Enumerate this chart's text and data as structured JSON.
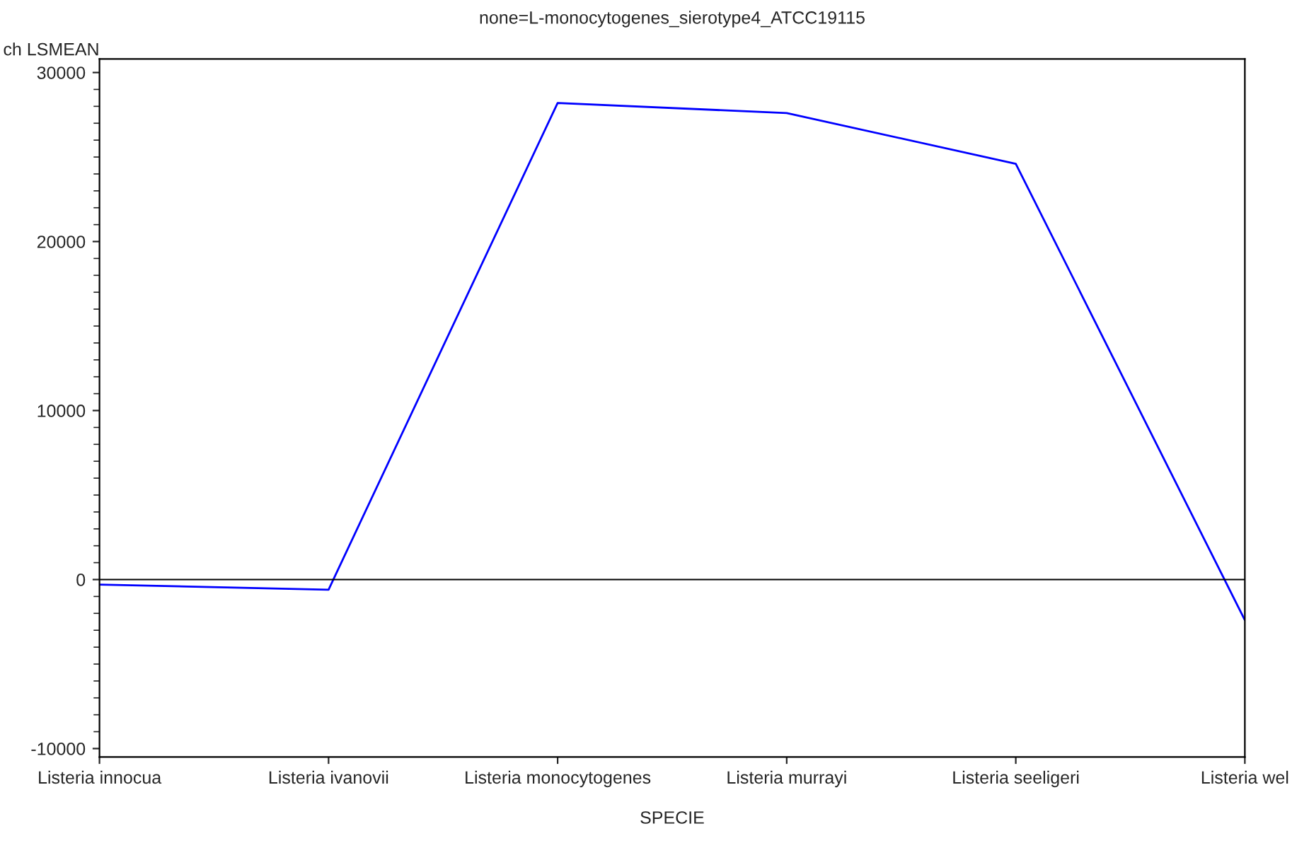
{
  "chart_data": {
    "type": "line",
    "title": "none=L-monocytogenes_sierotype4_ATCC19115",
    "xlabel": "SPECIE",
    "ylabel": "ch LSMEAN",
    "categories": [
      "Listeria innocua",
      "Listeria ivanovii",
      "Listeria monocytogenes",
      "Listeria murrayi",
      "Listeria seeligeri",
      "Listeria wel"
    ],
    "series": [
      {
        "color": "#0000ff",
        "values": [
          -300,
          -600,
          28200,
          27600,
          24600,
          -2400
        ]
      }
    ],
    "ylim": [
      -10500,
      30800
    ],
    "yticks": [
      -10000,
      0,
      10000,
      20000,
      30000
    ],
    "ref_lines": [
      {
        "axis": "y",
        "value": 0,
        "color": "#000000",
        "line_style": "solid"
      }
    ],
    "grid": false,
    "marker": "none",
    "line_style": "solid"
  }
}
